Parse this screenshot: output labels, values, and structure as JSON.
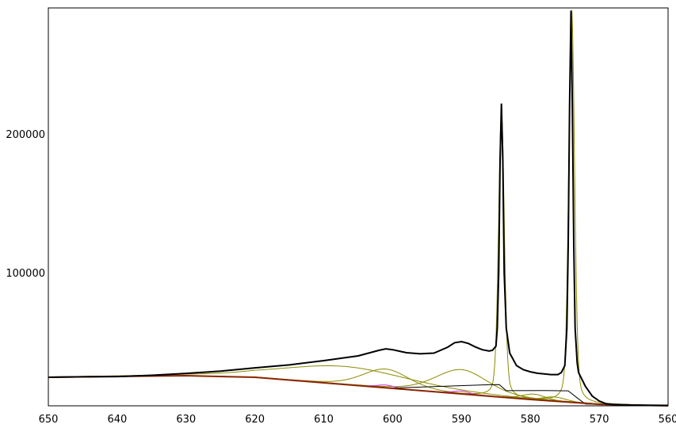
{
  "chart_data": {
    "type": "line",
    "title": "",
    "xlabel": "",
    "ylabel": "",
    "xlim": [
      650,
      560
    ],
    "x_reversed": true,
    "ylim": [
      4000,
      291000
    ],
    "grid": false,
    "legend": "none",
    "x_ticks": [
      "650",
      "640",
      "630",
      "620",
      "610",
      "600",
      "590",
      "580",
      "570",
      "560"
    ],
    "y_ticks": [
      "100000",
      "200000"
    ],
    "colors": {
      "spectrum": "#000000",
      "background": "#8b2500",
      "component": "#8b8b00",
      "minor_component": "#cc33cc",
      "step": "#000000"
    },
    "spectrum": {
      "x": [
        650,
        645,
        640,
        635,
        630,
        625,
        620,
        615,
        610,
        605,
        602,
        601,
        600,
        598,
        596,
        594,
        592,
        591,
        590,
        589,
        588,
        587,
        586,
        585.5,
        585,
        584.8,
        584.6,
        584.4,
        584.2,
        584.0,
        583.8,
        583.5,
        583,
        582,
        581,
        580,
        579,
        578,
        577,
        576,
        575.5,
        575,
        574.7,
        574.5,
        574.3,
        574.1,
        573.9,
        573.7,
        573.5,
        573.2,
        573,
        572,
        571,
        570,
        569,
        568,
        565,
        560
      ],
      "y": [
        24600,
        24900,
        25100,
        26000,
        27400,
        29000,
        31400,
        33500,
        36600,
        40000,
        44000,
        45100,
        44500,
        42300,
        41500,
        42000,
        46300,
        49500,
        50300,
        49000,
        46500,
        44500,
        43500,
        44000,
        47000,
        60000,
        100000,
        180000,
        222000,
        180000,
        100000,
        60000,
        42000,
        33000,
        30000,
        28500,
        27500,
        27000,
        26500,
        26500,
        28000,
        33000,
        60000,
        120000,
        220000,
        289000,
        220000,
        120000,
        60000,
        35000,
        28000,
        18000,
        11000,
        7500,
        5500,
        5000,
        4500,
        4300
      ]
    },
    "background": {
      "x": [
        650,
        640,
        630,
        620,
        610,
        600,
        590,
        580,
        570,
        560
      ],
      "y": [
        24600,
        25200,
        25700,
        24600,
        20600,
        16600,
        12600,
        8600,
        5100,
        4000
      ]
    },
    "components": [
      {
        "center": 607,
        "fwhm": 22,
        "amplitude": 13000,
        "color": "component"
      },
      {
        "center": 601,
        "fwhm": 8,
        "amplitude": 13500,
        "color": "component"
      },
      {
        "center": 590,
        "fwhm": 9,
        "amplitude": 17500,
        "color": "component"
      },
      {
        "center": 584.2,
        "fwhm": 1.0,
        "amplitude": 205000,
        "color": "component"
      },
      {
        "center": 579.5,
        "fwhm": 4,
        "amplitude": 4000,
        "color": "component"
      },
      {
        "center": 576.5,
        "fwhm": 4,
        "amplitude": 3000,
        "color": "component"
      },
      {
        "center": 574.0,
        "fwhm": 1.0,
        "amplitude": 283000,
        "color": "component"
      },
      {
        "center": 601,
        "fwhm": 3,
        "amplitude": 2000,
        "color": "minor_component"
      },
      {
        "center": 590,
        "fwhm": 3,
        "amplitude": 2000,
        "color": "minor_component"
      }
    ],
    "step_line": {
      "x": [
        600,
        586,
        584.5,
        583.5,
        578,
        574.5,
        573,
        572,
        570
      ],
      "y": [
        16800,
        19200,
        19300,
        14900,
        15000,
        14800,
        9000,
        5300,
        5100
      ]
    }
  }
}
